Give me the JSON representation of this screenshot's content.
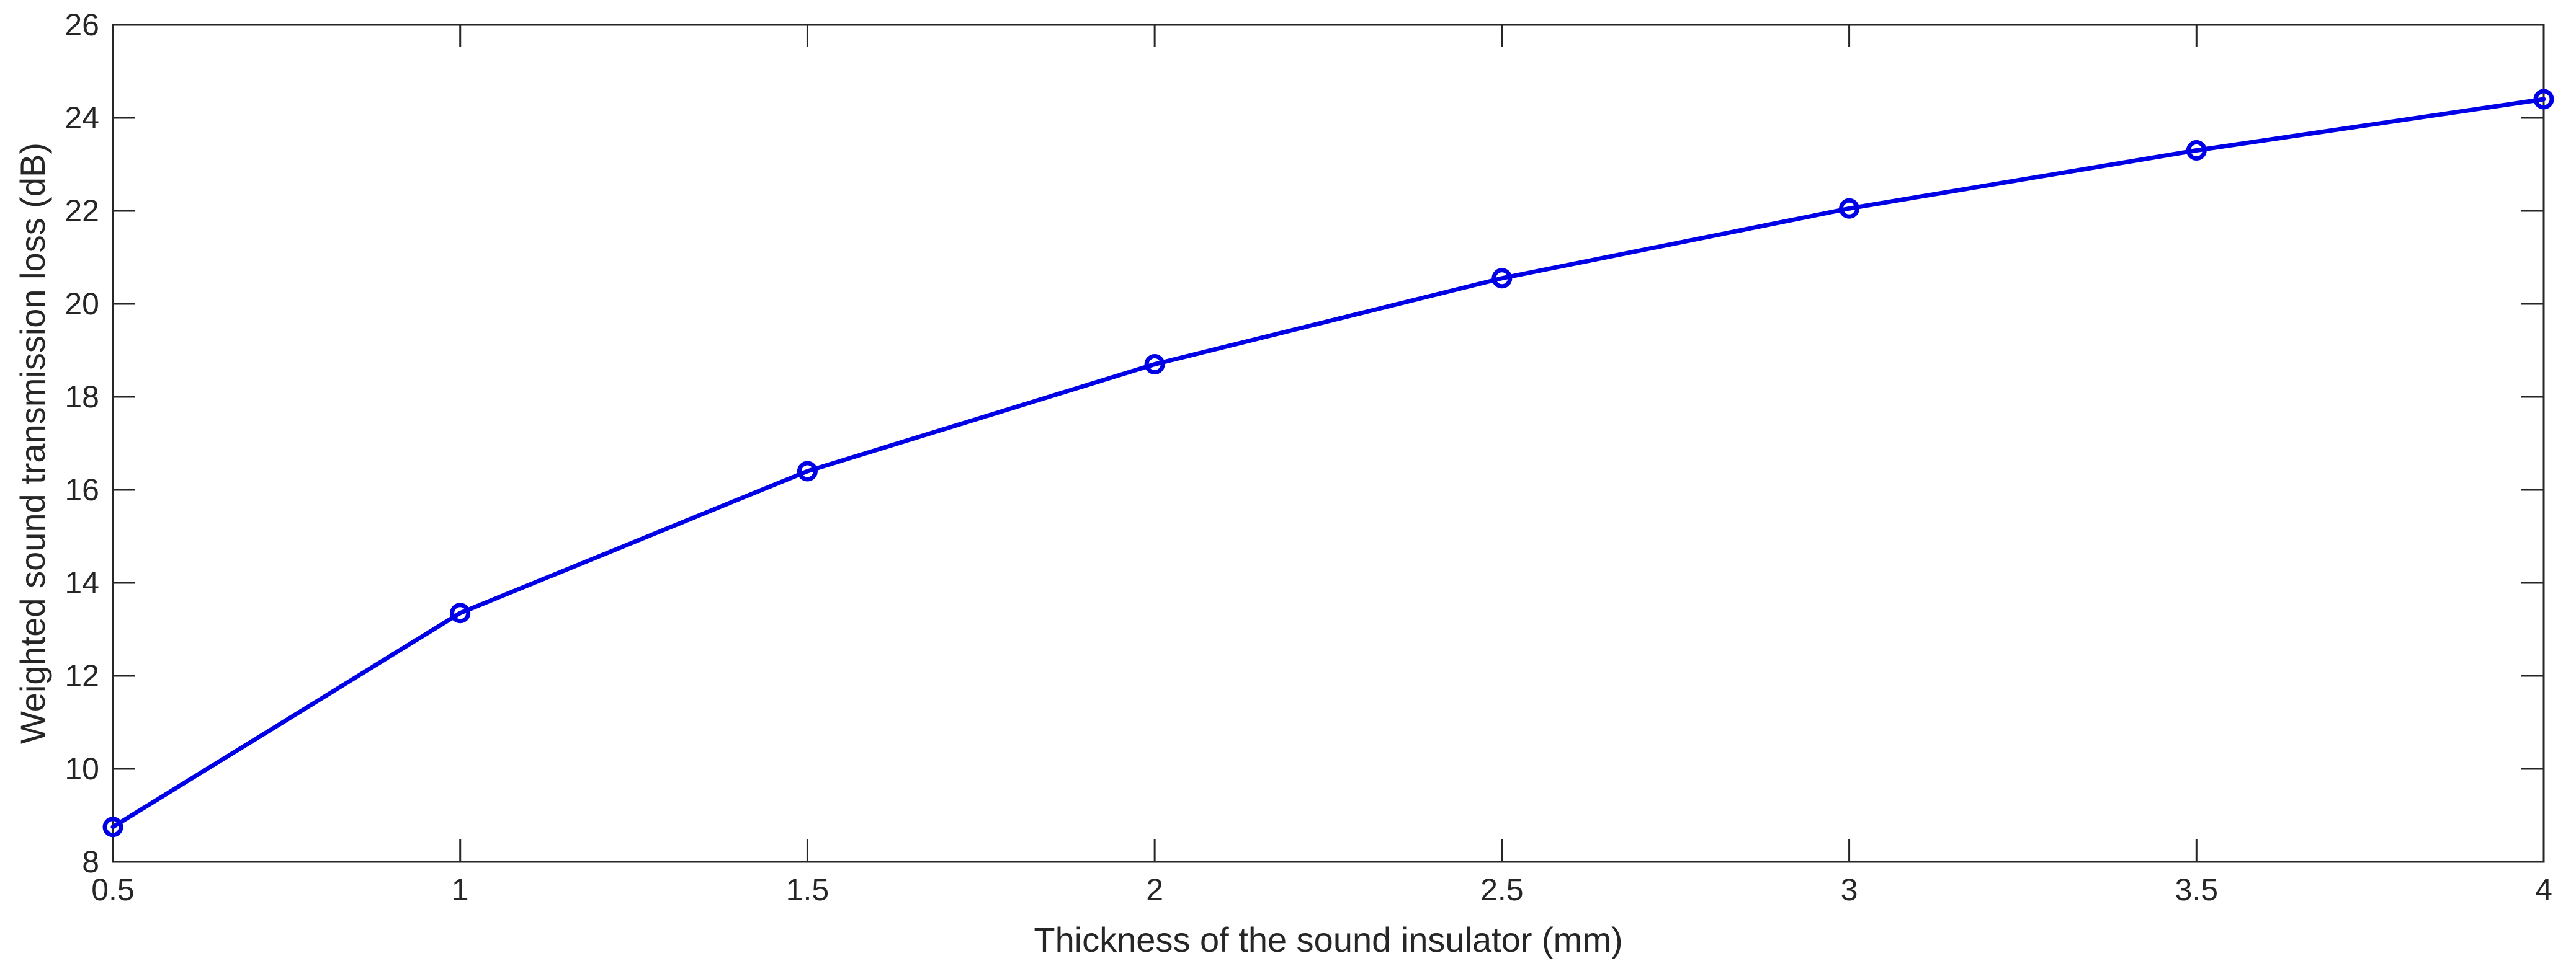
{
  "chart_data": {
    "type": "line",
    "title": "",
    "xlabel": "Thickness of the sound insulator (mm)",
    "ylabel": "Weighted sound transmission loss (dB)",
    "xlim": [
      0.5,
      4
    ],
    "ylim": [
      8,
      26
    ],
    "xticks": [
      0.5,
      1,
      1.5,
      2,
      2.5,
      3,
      3.5,
      4
    ],
    "yticks": [
      8,
      10,
      12,
      14,
      16,
      18,
      20,
      22,
      24,
      26
    ],
    "xtick_labels": [
      "0.5",
      "1",
      "1.5",
      "2",
      "2.5",
      "3",
      "3.5",
      "4"
    ],
    "ytick_labels": [
      "8",
      "10",
      "12",
      "14",
      "16",
      "18",
      "20",
      "22",
      "24",
      "26"
    ],
    "grid": false,
    "legend": "none",
    "series": [
      {
        "color": "#0000e6",
        "marker": "circle",
        "x": [
          0.5,
          1,
          1.5,
          2,
          2.5,
          3,
          3.5,
          4
        ],
        "y": [
          8.75,
          13.35,
          16.4,
          18.7,
          20.55,
          22.05,
          23.3,
          24.4
        ]
      }
    ]
  }
}
